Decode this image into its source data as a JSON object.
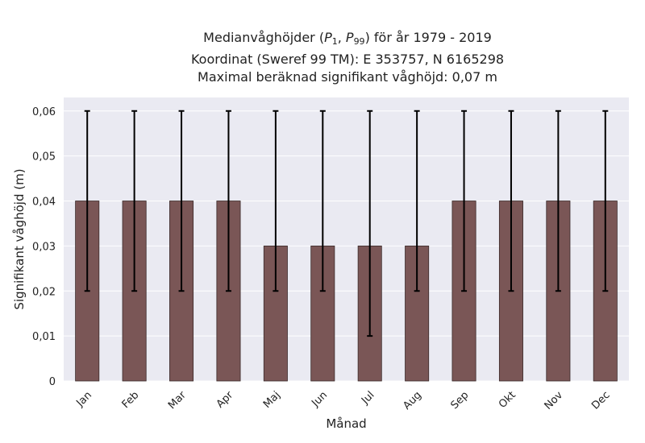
{
  "chart_data": {
    "type": "bar",
    "title_lines": {
      "line1_prefix": "Medianvåghöjder (",
      "p_symbol": "P",
      "p_low_sub": "1",
      "p_sep": ", ",
      "p_high_sub": "99",
      "line1_suffix": ") för år 1979 - 2019",
      "line2": "Koordinat (Sweref 99 TM): E 353757, N 6165298",
      "line3": "Maximal beräknad signifikant våghöjd: 0,07 m"
    },
    "xlabel": "Månad",
    "ylabel": "Signifikant våghöjd (m)",
    "ylim": [
      0,
      0.063
    ],
    "yticks": [
      0,
      0.01,
      0.02,
      0.03,
      0.04,
      0.05,
      0.06
    ],
    "ytick_labels": [
      "0",
      "0,01",
      "0,02",
      "0,03",
      "0,04",
      "0,05",
      "0,06"
    ],
    "categories": [
      "Jan",
      "Feb",
      "Mar",
      "Apr",
      "Maj",
      "Jun",
      "Jul",
      "Aug",
      "Sep",
      "Okt",
      "Nov",
      "Dec"
    ],
    "values": [
      0.04,
      0.04,
      0.04,
      0.04,
      0.03,
      0.03,
      0.03,
      0.03,
      0.04,
      0.04,
      0.04,
      0.04
    ],
    "error_low": [
      0.02,
      0.02,
      0.02,
      0.02,
      0.02,
      0.02,
      0.01,
      0.02,
      0.02,
      0.02,
      0.02,
      0.02
    ],
    "error_high": [
      0.06,
      0.06,
      0.06,
      0.06,
      0.06,
      0.06,
      0.06,
      0.06,
      0.06,
      0.06,
      0.06,
      0.06
    ],
    "grid": true,
    "colors": {
      "bar": "#7a5656",
      "bar_edge": "#3a2a2a",
      "plot_background": "#eaeaf2",
      "grid": "#ffffff",
      "error_bar": "#000000",
      "text": "#222222"
    }
  }
}
